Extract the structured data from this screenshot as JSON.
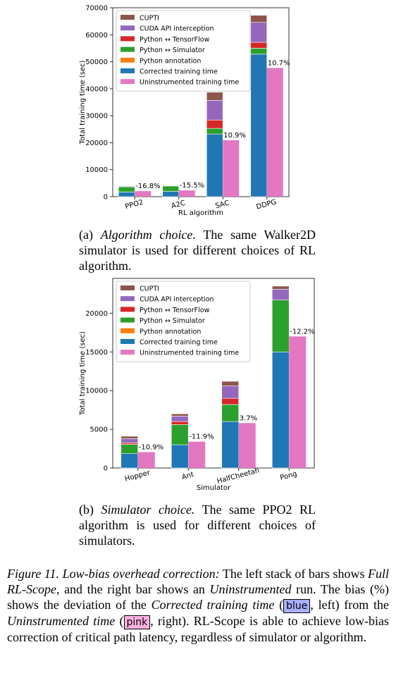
{
  "chart_data": [
    {
      "type": "bar",
      "xlabel": "RL algorithm",
      "ylabel": "Total training time (sec)",
      "ylim": [
        0,
        70000
      ],
      "yticks": [
        0,
        10000,
        20000,
        30000,
        40000,
        50000,
        60000,
        70000
      ],
      "categories": [
        "PPO2",
        "A2C",
        "SAC",
        "DDPG"
      ],
      "stack_series": [
        {
          "name": "Corrected training time",
          "values": [
            1700,
            1950,
            23200,
            52800
          ]
        },
        {
          "name": "Python annotation",
          "values": [
            0,
            0,
            0,
            0
          ]
        },
        {
          "name": "Python ↔ Simulator",
          "values": [
            1900,
            2000,
            2100,
            2200
          ]
        },
        {
          "name": "Python ↔ TensorFlow",
          "values": [
            150,
            150,
            3100,
            2200
          ]
        },
        {
          "name": "CUDA API interception",
          "values": [
            250,
            200,
            7300,
            7400
          ]
        },
        {
          "name": "CUPTI",
          "values": [
            100,
            120,
            3000,
            2600
          ]
        }
      ],
      "uninstrumented": {
        "name": "Uninstrumented training time",
        "values": [
          2050,
          2300,
          20900,
          47700
        ]
      },
      "bias_labels": [
        "-16.8%",
        "-15.5%",
        "10.9%",
        "10.7%"
      ],
      "legend": "top-left"
    },
    {
      "type": "bar",
      "xlabel": "Simulator",
      "ylabel": "Total training time (sec)",
      "ylim": [
        0,
        24500
      ],
      "yticks": [
        0,
        5000,
        10000,
        15000,
        20000
      ],
      "categories": [
        "Hopper",
        "Ant",
        "HalfCheetah",
        "Pong"
      ],
      "stack_series": [
        {
          "name": "Corrected training time",
          "values": [
            1850,
            3000,
            6000,
            15000
          ]
        },
        {
          "name": "Python annotation",
          "values": [
            0,
            0,
            0,
            0
          ]
        },
        {
          "name": "Python ↔ Simulator",
          "values": [
            1200,
            2600,
            2200,
            6700
          ]
        },
        {
          "name": "Python ↔ TensorFlow",
          "values": [
            200,
            400,
            800,
            0
          ]
        },
        {
          "name": "CUDA API interception",
          "values": [
            550,
            700,
            1600,
            1400
          ]
        },
        {
          "name": "CUPTI",
          "values": [
            300,
            300,
            600,
            400
          ]
        }
      ],
      "uninstrumented": {
        "name": "Uninstrumented training time",
        "values": [
          2050,
          3400,
          5800,
          17000
        ]
      },
      "bias_labels": [
        "-10.9%",
        "-11.9%",
        "3.7%",
        "-12.2%"
      ],
      "legend": "top-left"
    }
  ],
  "legend_order": [
    "CUPTI",
    "CUDA API interception",
    "Python ↔ TensorFlow",
    "Python ↔ Simulator",
    "Python annotation",
    "Corrected training time",
    "Uninstrumented training time"
  ],
  "colors": {
    "CUPTI": "#8c564b",
    "CUDA API interception": "#9467bd",
    "Python ↔ TensorFlow": "#d62728",
    "Python ↔ Simulator": "#2ca02c",
    "Python annotation": "#ff7f0e",
    "Corrected training time": "#1f77b4",
    "Uninstrumented training time": "#e377c2"
  },
  "caption_a": {
    "label": "(a)",
    "title": "Algorithm choice.",
    "text": "The same Walker2D simulator is used for different choices of RL algorithm."
  },
  "caption_b": {
    "label": "(b)",
    "title": "Simulator choice.",
    "text": "The same PPO2 RL algorithm is used for different choices of simulators."
  },
  "figure_caption": {
    "label": "Figure 11.",
    "title": "Low-bias overhead correction:",
    "part1": "The left stack of bars shows",
    "full": "Full RL-Scope",
    "part2": ", and the right bar shows an",
    "unin": "Uninstrumented",
    "part3": "run. The bias (%) shows the deviation of the",
    "corrected": "Corrected training time",
    "part4": "(",
    "blue_swatch": "blue",
    "part5": ", left) from the",
    "unin_time": "Uninstrumented time",
    "part6": "(",
    "pink_swatch": "pink",
    "part7": ", right). RL-Scope is able to achieve low-bias correction of critical path latency, regardless of simulator or algorithm."
  },
  "swatch_colors": {
    "blue": "#aab0ff",
    "pink": "#ffb0e0"
  }
}
